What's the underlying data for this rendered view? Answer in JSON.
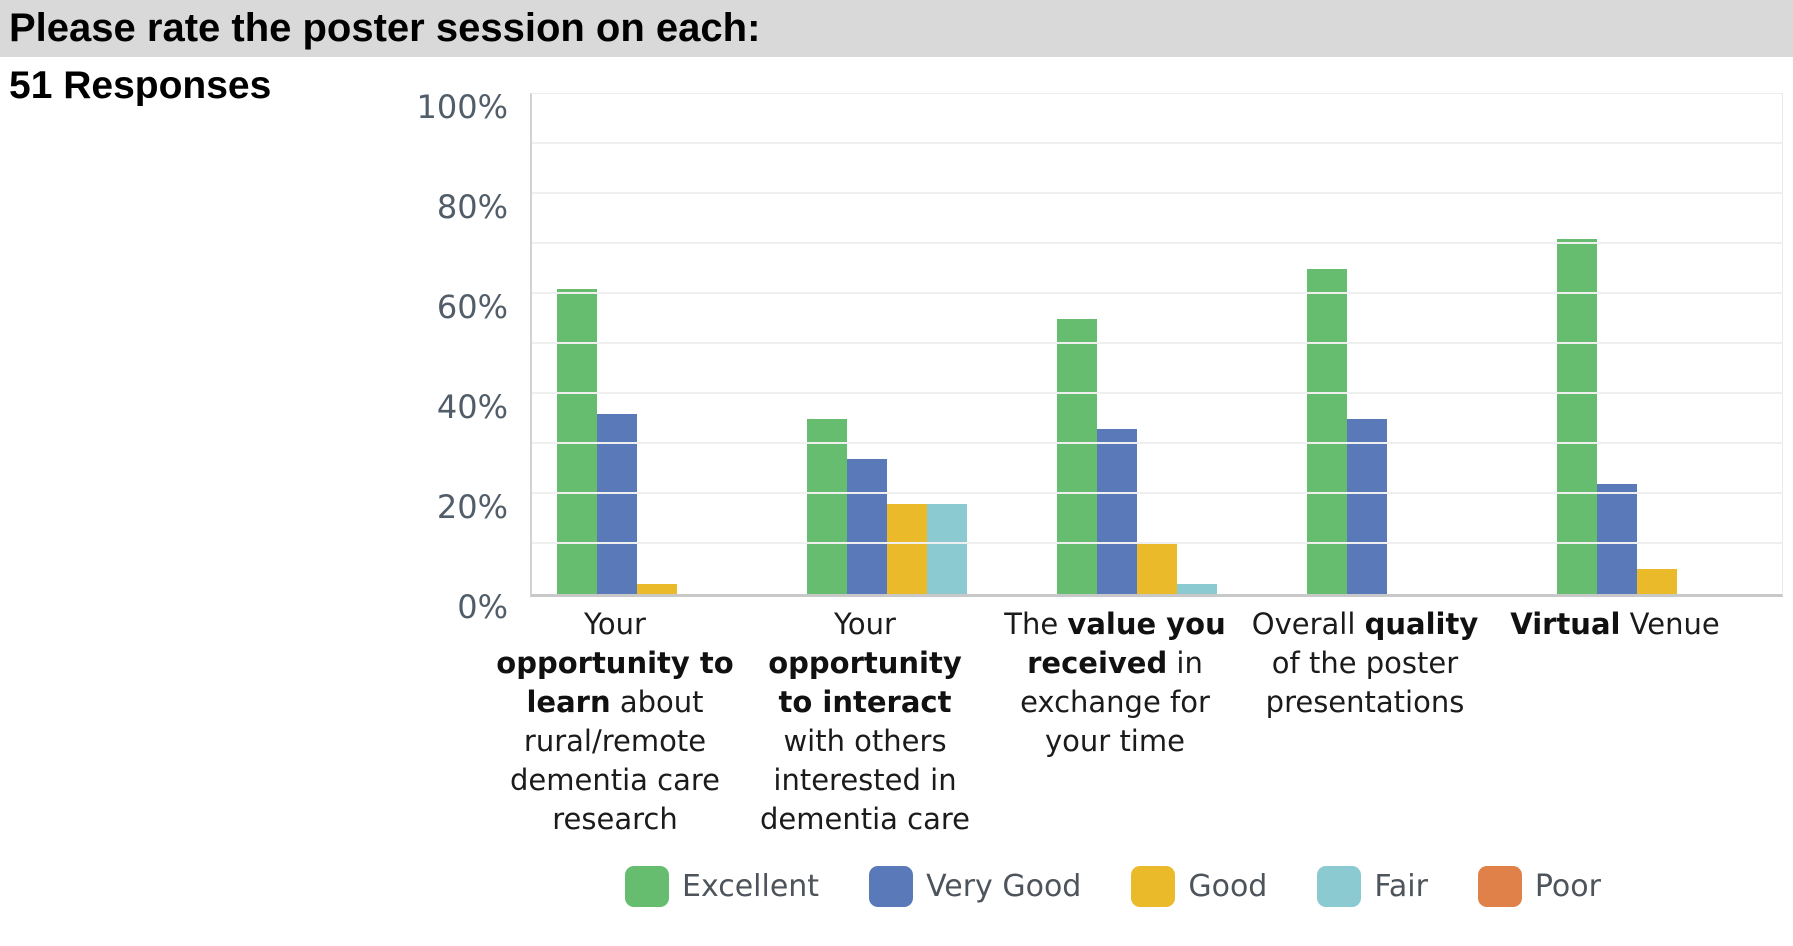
{
  "header": {
    "title": "Please rate the poster session on each:"
  },
  "responses_label": "51 Responses",
  "chart_data": {
    "type": "bar",
    "title": "Please rate the poster session on each:",
    "subtitle": "51 Responses",
    "ylabel": "",
    "xlabel": "",
    "ylim": [
      0,
      100
    ],
    "y_ticks": [
      "0%",
      "20%",
      "40%",
      "60%",
      "80%",
      "100%"
    ],
    "y_tick_values": [
      0,
      20,
      40,
      60,
      80,
      100
    ],
    "gridline_step_pct": 10,
    "grid": true,
    "legend_position": "bottom",
    "categories": [
      "Your opportunity to learn about rural/remote dementia care research",
      "Your opportunity to interact with others interested in dementia care",
      "The value you received in exchange for your time",
      "Overall quality of the poster presentations",
      "Virtual Venue"
    ],
    "categories_rich": [
      "Your<br><b>opportunity to</b><br><b>learn</b> about<br>rural/remote<br>dementia care<br>research",
      "Your<br><b>opportunity</b><br><b>to interact</b><br>with others<br>interested in<br>dementia care",
      "The <b>value you</b><br><b>received</b> in<br>exchange for<br>your time",
      "Overall <b>quality</b><br>of the poster<br>presentations",
      "<b>Virtual</b> Venue"
    ],
    "series": [
      {
        "name": "Excellent",
        "color": "#66bd6f",
        "values": [
          61,
          35,
          55,
          65,
          71
        ]
      },
      {
        "name": "Very Good",
        "color": "#5a79b8",
        "values": [
          36,
          27,
          33,
          35,
          22
        ]
      },
      {
        "name": "Good",
        "color": "#eaba2b",
        "values": [
          2,
          18,
          10,
          0,
          5
        ]
      },
      {
        "name": "Fair",
        "color": "#8bcad0",
        "values": [
          0,
          18,
          2,
          0,
          0
        ]
      },
      {
        "name": "Poor",
        "color": "#e0814a",
        "values": [
          0,
          0,
          0,
          0,
          0
        ]
      }
    ],
    "colors": {
      "header_bar": "#d9d9d9",
      "axis_line": "#c8c8c8",
      "gridline": "#efefef",
      "tick_text": "#515d68",
      "category_text": "#1b1b1b",
      "legend_text": "#4e545b"
    }
  }
}
